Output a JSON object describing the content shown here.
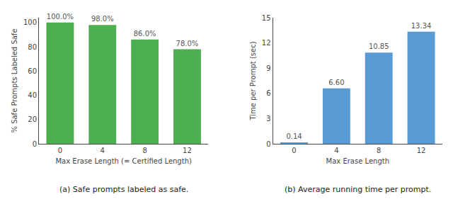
{
  "chart_data": [
    {
      "type": "bar",
      "title": "(a) Safe prompts labeled as safe.",
      "categories": [
        "0",
        "4",
        "8",
        "12"
      ],
      "values": [
        100.0,
        98.0,
        86.0,
        78.0
      ],
      "value_labels": [
        "100.0%",
        "98.0%",
        "86.0%",
        "78.0%"
      ],
      "data_labels": true,
      "color": "#4caf50",
      "xlabel": "Max Erase Length (= Certified Length)",
      "ylabel": "% Safe Prompts Labeled Safe",
      "ylim": [
        0,
        104
      ],
      "yticks": [
        0,
        20,
        40,
        60,
        80,
        100
      ],
      "grid": false
    },
    {
      "type": "bar",
      "title": "(b) Average running time per prompt.",
      "categories": [
        "0",
        "4",
        "8",
        "12"
      ],
      "values": [
        0.14,
        6.6,
        10.85,
        13.34
      ],
      "value_labels": [
        "0.14",
        "6.60",
        "10.85",
        "13.34"
      ],
      "data_labels": true,
      "color": "#5b9bd5",
      "xlabel": "Max Erase Length",
      "ylabel": "Time per Prompt (sec)",
      "ylim": [
        0,
        15
      ],
      "yticks": [
        0,
        3,
        6,
        9,
        12,
        15
      ],
      "grid": false
    }
  ]
}
